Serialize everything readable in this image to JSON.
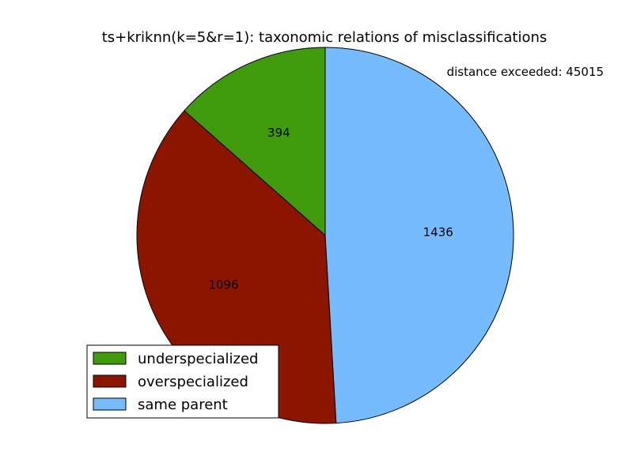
{
  "chart_data": {
    "type": "pie",
    "title": "ts+kriknn(k=5&r=1): taxonomic relations of misclassifications",
    "annotation": "distance exceeded: 45015",
    "slices": [
      {
        "label": "underspecialized",
        "value": 394,
        "color": "#3f9b0b"
      },
      {
        "label": "overspecialized",
        "value": 1096,
        "color": "#8c1500"
      },
      {
        "label": "same parent",
        "value": 1436,
        "color": "#75bbfd"
      }
    ],
    "start_angle_deg": 90,
    "direction": "counterclockwise",
    "legend_position": "lower-left"
  }
}
